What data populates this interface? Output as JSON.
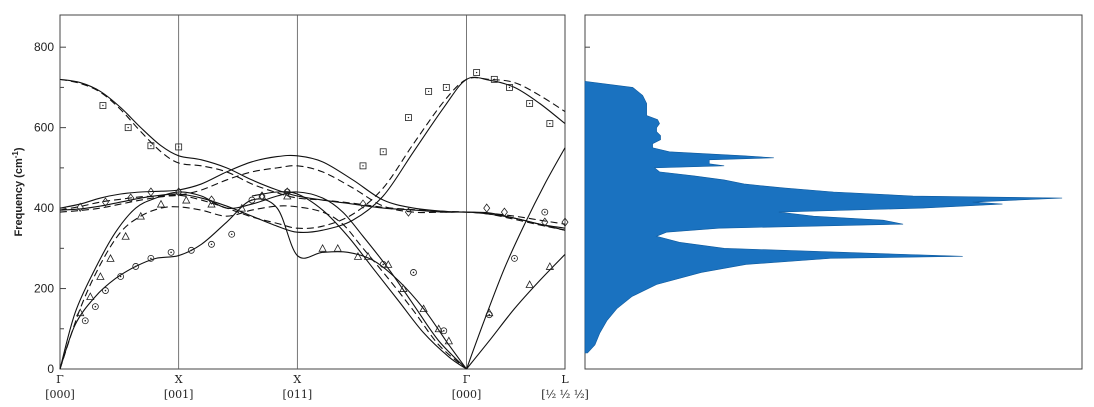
{
  "chart_data": [
    {
      "type": "line",
      "title": "",
      "ylabel_main": "Frequency (cm",
      "ylabel_sup": "-1",
      "ylabel_tail": ")",
      "ylim": [
        0,
        880
      ],
      "yticks": [
        0,
        200,
        400,
        600,
        800
      ],
      "grid": false,
      "path_points": [
        {
          "pos": 0.0,
          "symbol": "Γ",
          "index": "[000]"
        },
        {
          "pos": 0.235,
          "symbol": "X",
          "index": "[001]"
        },
        {
          "pos": 0.47,
          "symbol": "X",
          "index": "[011]"
        },
        {
          "pos": 0.805,
          "symbol": "Γ",
          "index": "[000]"
        },
        {
          "pos": 1.0,
          "symbol": "L",
          "index": "[½ ½ ½]"
        }
      ],
      "series": [
        {
          "style": "solid",
          "x": [
            0,
            0.04,
            0.08,
            0.12,
            0.16,
            0.2,
            0.235,
            0.28,
            0.33,
            0.38,
            0.43,
            0.47,
            0.52,
            0.58,
            0.64,
            0.7,
            0.76,
            0.805,
            0.85,
            0.9,
            0.95,
            1.0
          ],
          "y": [
            720,
            712,
            690,
            650,
            600,
            555,
            530,
            520,
            500,
            470,
            445,
            430,
            420,
            410,
            400,
            395,
            390,
            390,
            385,
            375,
            360,
            350
          ]
        },
        {
          "style": "solid",
          "x": [
            0,
            0.04,
            0.08,
            0.12,
            0.16,
            0.2,
            0.235,
            0.28,
            0.33,
            0.38,
            0.43,
            0.47,
            0.52,
            0.58,
            0.64,
            0.7,
            0.76,
            0.805,
            0.85,
            0.9,
            0.95,
            1.0
          ],
          "y": [
            395,
            398,
            405,
            415,
            425,
            432,
            435,
            425,
            405,
            380,
            355,
            340,
            345,
            370,
            430,
            540,
            650,
            720,
            718,
            700,
            660,
            610
          ]
        },
        {
          "style": "solid",
          "x": [
            0,
            0.04,
            0.08,
            0.12,
            0.16,
            0.2,
            0.235,
            0.28,
            0.33,
            0.38,
            0.43,
            0.47,
            0.52,
            0.58,
            0.64,
            0.7,
            0.76,
            0.805,
            0.85,
            0.9,
            0.95,
            1.0
          ],
          "y": [
            400,
            410,
            425,
            435,
            440,
            442,
            445,
            460,
            490,
            515,
            528,
            530,
            515,
            470,
            420,
            400,
            392,
            390,
            388,
            375,
            360,
            345
          ]
        },
        {
          "style": "solid",
          "x": [
            0,
            0.03,
            0.07,
            0.11,
            0.15,
            0.19,
            0.235,
            0.28,
            0.33,
            0.38,
            0.43,
            0.47,
            0.52,
            0.56,
            0.6,
            0.65,
            0.7,
            0.75,
            0.805
          ],
          "y": [
            0,
            140,
            250,
            340,
            400,
            425,
            440,
            430,
            400,
            410,
            430,
            440,
            425,
            390,
            330,
            250,
            160,
            70,
            0
          ]
        },
        {
          "style": "solid",
          "x": [
            0,
            0.03,
            0.07,
            0.11,
            0.15,
            0.19,
            0.235,
            0.28,
            0.33,
            0.38,
            0.43,
            0.47,
            0.52,
            0.57,
            0.62,
            0.67,
            0.72,
            0.77,
            0.805
          ],
          "y": [
            0,
            110,
            180,
            225,
            255,
            275,
            282,
            310,
            365,
            420,
            400,
            282,
            290,
            290,
            270,
            220,
            150,
            60,
            0
          ]
        },
        {
          "style": "solid",
          "x": [
            0.805,
            0.84,
            0.88,
            0.92,
            0.96,
            1.0
          ],
          "y": [
            0,
            120,
            250,
            360,
            460,
            550
          ]
        },
        {
          "style": "solid",
          "x": [
            0.805,
            0.85,
            0.9,
            0.95,
            1.0
          ],
          "y": [
            0,
            70,
            150,
            220,
            285
          ]
        },
        {
          "style": "solid",
          "x": [
            0.38,
            0.43,
            0.47,
            0.52,
            0.57,
            0.62,
            0.67,
            0.72,
            0.77,
            0.805
          ],
          "y": [
            430,
            440,
            435,
            395,
            330,
            250,
            170,
            90,
            30,
            0
          ]
        },
        {
          "style": "dashed",
          "x": [
            0,
            0.04,
            0.08,
            0.12,
            0.16,
            0.2,
            0.235,
            0.28,
            0.33,
            0.38,
            0.43,
            0.47,
            0.52,
            0.58,
            0.64,
            0.7,
            0.76,
            0.805,
            0.85,
            0.9,
            0.95,
            1.0
          ],
          "y": [
            720,
            710,
            688,
            645,
            590,
            540,
            512,
            505,
            490,
            460,
            438,
            425,
            420,
            412,
            402,
            396,
            392,
            390,
            387,
            380,
            370,
            360
          ]
        },
        {
          "style": "dashed",
          "x": [
            0,
            0.04,
            0.08,
            0.12,
            0.16,
            0.2,
            0.235,
            0.28,
            0.33,
            0.38,
            0.43,
            0.47,
            0.52,
            0.58,
            0.64,
            0.7,
            0.76,
            0.805,
            0.85,
            0.9,
            0.95,
            1.0
          ],
          "y": [
            390,
            394,
            400,
            410,
            420,
            428,
            432,
            420,
            400,
            378,
            362,
            350,
            355,
            385,
            450,
            560,
            665,
            720,
            720,
            712,
            680,
            640
          ]
        },
        {
          "style": "dashed",
          "x": [
            0,
            0.04,
            0.08,
            0.12,
            0.16,
            0.2,
            0.235,
            0.28,
            0.33,
            0.38,
            0.43,
            0.47,
            0.52,
            0.58,
            0.64,
            0.7,
            0.76,
            0.805,
            0.85,
            0.9,
            0.95,
            1.0
          ],
          "y": [
            395,
            404,
            415,
            422,
            428,
            430,
            432,
            445,
            470,
            490,
            500,
            505,
            490,
            450,
            405,
            390,
            390,
            390,
            385,
            372,
            358,
            345
          ]
        },
        {
          "style": "dashed",
          "x": [
            0,
            0.04,
            0.08,
            0.12,
            0.16,
            0.2,
            0.235,
            0.28,
            0.33,
            0.38,
            0.43,
            0.47,
            0.52,
            0.56,
            0.6,
            0.65,
            0.7,
            0.75,
            0.805
          ],
          "y": [
            0,
            150,
            260,
            340,
            380,
            400,
            403,
            395,
            380,
            395,
            405,
            403,
            390,
            360,
            300,
            225,
            145,
            60,
            0
          ]
        }
      ],
      "observed": {
        "squares": [
          [
            0.085,
            655
          ],
          [
            0.135,
            600
          ],
          [
            0.18,
            555
          ],
          [
            0.235,
            552
          ],
          [
            0.6,
            505
          ],
          [
            0.64,
            540
          ],
          [
            0.69,
            625
          ],
          [
            0.73,
            690
          ],
          [
            0.765,
            700
          ],
          [
            0.825,
            737
          ],
          [
            0.86,
            720
          ],
          [
            0.89,
            700
          ],
          [
            0.93,
            660
          ],
          [
            0.97,
            610
          ]
        ],
        "diamonds": [
          [
            0.04,
            402
          ],
          [
            0.09,
            415
          ],
          [
            0.14,
            425
          ],
          [
            0.18,
            440
          ],
          [
            0.235,
            440
          ],
          [
            0.3,
            420
          ],
          [
            0.4,
            430
          ],
          [
            0.45,
            440
          ],
          [
            0.6,
            410
          ],
          [
            0.69,
            390
          ],
          [
            0.845,
            400
          ],
          [
            0.88,
            390
          ],
          [
            0.96,
            365
          ],
          [
            1.0,
            365
          ]
        ],
        "triangles": [
          [
            0.04,
            140
          ],
          [
            0.06,
            180
          ],
          [
            0.08,
            230
          ],
          [
            0.1,
            275
          ],
          [
            0.13,
            330
          ],
          [
            0.16,
            380
          ],
          [
            0.2,
            410
          ],
          [
            0.25,
            420
          ],
          [
            0.3,
            410
          ],
          [
            0.36,
            400
          ],
          [
            0.4,
            430
          ],
          [
            0.45,
            430
          ],
          [
            0.52,
            300
          ],
          [
            0.55,
            300
          ],
          [
            0.59,
            280
          ],
          [
            0.61,
            280
          ],
          [
            0.65,
            260
          ],
          [
            0.68,
            200
          ],
          [
            0.72,
            150
          ],
          [
            0.75,
            100
          ],
          [
            0.77,
            70
          ],
          [
            0.85,
            140
          ],
          [
            0.93,
            210
          ],
          [
            0.97,
            255
          ]
        ],
        "circles": [
          [
            0.05,
            120
          ],
          [
            0.07,
            155
          ],
          [
            0.09,
            195
          ],
          [
            0.12,
            230
          ],
          [
            0.15,
            255
          ],
          [
            0.18,
            275
          ],
          [
            0.22,
            290
          ],
          [
            0.26,
            295
          ],
          [
            0.3,
            310
          ],
          [
            0.34,
            335
          ],
          [
            0.38,
            420
          ],
          [
            0.45,
            440
          ],
          [
            0.64,
            260
          ],
          [
            0.7,
            240
          ],
          [
            0.76,
            95
          ],
          [
            0.85,
            135
          ],
          [
            0.9,
            275
          ],
          [
            0.96,
            390
          ]
        ]
      }
    },
    {
      "type": "area",
      "title": "",
      "orientation": "horizontal",
      "ylim": [
        0,
        880
      ],
      "fill_color": "#1a72c0",
      "frequencies": [
        40,
        60,
        90,
        120,
        150,
        180,
        210,
        240,
        260,
        275,
        280,
        290,
        300,
        315,
        330,
        340,
        350,
        360,
        370,
        380,
        390,
        400,
        410,
        415,
        425,
        430,
        440,
        450,
        460,
        470,
        480,
        490,
        500,
        505,
        510,
        520,
        525,
        530,
        540,
        550,
        560,
        570,
        580,
        590,
        600,
        610,
        620,
        630,
        640,
        660,
        680,
        700,
        715
      ],
      "dos": [
        2.5,
        10,
        15,
        22,
        32,
        47,
        72,
        117,
        162,
        247,
        380,
        260,
        140,
        95,
        72,
        82,
        135,
        320,
        300,
        230,
        195,
        340,
        420,
        390,
        480,
        330,
        250,
        200,
        160,
        140,
        110,
        75,
        70,
        140,
        125,
        125,
        190,
        160,
        85,
        68,
        68,
        76,
        76,
        72,
        72,
        75,
        73,
        62,
        62,
        62,
        58,
        48,
        0
      ]
    }
  ]
}
